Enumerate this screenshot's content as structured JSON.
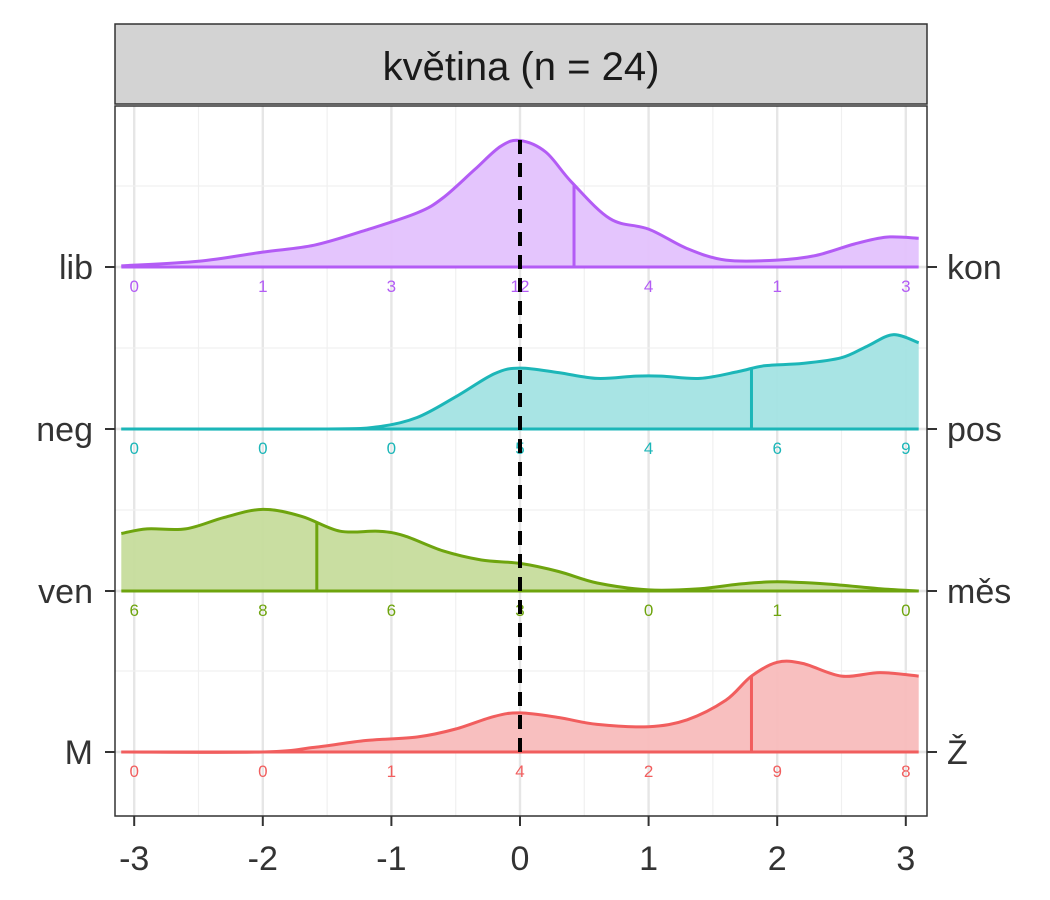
{
  "chart_data": {
    "type": "ridgeline",
    "title": "květina (n = 24)",
    "x_ticks": [
      -3,
      -2,
      -1,
      0,
      1,
      2,
      3
    ],
    "x_tick_labels": [
      "-3",
      "-2",
      "-1",
      "0",
      "1",
      "2",
      "3"
    ],
    "xlim": [
      -3.1,
      3.1
    ],
    "reference_line_x": 0,
    "grid": true,
    "count_positions": [
      -3,
      -2,
      -1,
      0,
      1,
      2,
      3
    ],
    "series": [
      {
        "left_label": "lib",
        "right_label": "kon",
        "color": "#b35cf5",
        "fill": "#e3c2fd",
        "mean": 0.42,
        "counts": [
          "0",
          "1",
          "3",
          "12",
          "4",
          "1",
          "3"
        ],
        "density": [
          [
            -3.1,
            0.01
          ],
          [
            -2.5,
            0.05
          ],
          [
            -2.0,
            0.13
          ],
          [
            -1.6,
            0.19
          ],
          [
            -1.2,
            0.32
          ],
          [
            -0.8,
            0.47
          ],
          [
            -0.6,
            0.6
          ],
          [
            -0.35,
            0.85
          ],
          [
            -0.15,
            1.05
          ],
          [
            0.0,
            1.1
          ],
          [
            0.2,
            1.0
          ],
          [
            0.4,
            0.74
          ],
          [
            0.7,
            0.42
          ],
          [
            1.0,
            0.33
          ],
          [
            1.3,
            0.16
          ],
          [
            1.6,
            0.06
          ],
          [
            2.0,
            0.06
          ],
          [
            2.3,
            0.1
          ],
          [
            2.6,
            0.2
          ],
          [
            2.85,
            0.26
          ],
          [
            3.1,
            0.25
          ]
        ]
      },
      {
        "left_label": "neg",
        "right_label": "pos",
        "color": "#1cb6b8",
        "fill": "#a3e3e3",
        "mean": 1.8,
        "counts": [
          "0",
          "0",
          "0",
          "5",
          "4",
          "6",
          "9"
        ],
        "density": [
          [
            -3.1,
            0.0
          ],
          [
            -1.5,
            0.0
          ],
          [
            -1.1,
            0.02
          ],
          [
            -0.8,
            0.1
          ],
          [
            -0.5,
            0.28
          ],
          [
            -0.2,
            0.48
          ],
          [
            0.0,
            0.53
          ],
          [
            0.3,
            0.49
          ],
          [
            0.6,
            0.44
          ],
          [
            0.9,
            0.46
          ],
          [
            1.1,
            0.46
          ],
          [
            1.4,
            0.44
          ],
          [
            1.7,
            0.5
          ],
          [
            1.9,
            0.55
          ],
          [
            2.2,
            0.57
          ],
          [
            2.5,
            0.62
          ],
          [
            2.7,
            0.72
          ],
          [
            2.9,
            0.82
          ],
          [
            3.1,
            0.75
          ]
        ]
      },
      {
        "left_label": "ven",
        "right_label": "měs",
        "color": "#6ea40e",
        "fill": "#c6dc9c",
        "mean": -1.58,
        "counts": [
          "6",
          "8",
          "6",
          "3",
          "0",
          "1",
          "0"
        ],
        "density": [
          [
            -3.1,
            0.5
          ],
          [
            -2.9,
            0.54
          ],
          [
            -2.6,
            0.54
          ],
          [
            -2.3,
            0.64
          ],
          [
            -2.0,
            0.71
          ],
          [
            -1.7,
            0.65
          ],
          [
            -1.4,
            0.52
          ],
          [
            -1.1,
            0.52
          ],
          [
            -0.9,
            0.48
          ],
          [
            -0.6,
            0.35
          ],
          [
            -0.3,
            0.27
          ],
          [
            0.0,
            0.24
          ],
          [
            0.3,
            0.17
          ],
          [
            0.6,
            0.07
          ],
          [
            1.0,
            0.01
          ],
          [
            1.4,
            0.02
          ],
          [
            1.7,
            0.06
          ],
          [
            2.0,
            0.08
          ],
          [
            2.4,
            0.06
          ],
          [
            2.8,
            0.02
          ],
          [
            3.1,
            0.0
          ]
        ]
      },
      {
        "left_label": "M",
        "right_label": "Ž",
        "color": "#f15e5e",
        "fill": "#f8bcbc",
        "mean": 1.8,
        "counts": [
          "0",
          "0",
          "1",
          "4",
          "2",
          "9",
          "8"
        ],
        "density": [
          [
            -3.1,
            0.0
          ],
          [
            -2.0,
            0.0
          ],
          [
            -1.6,
            0.04
          ],
          [
            -1.2,
            0.1
          ],
          [
            -0.8,
            0.13
          ],
          [
            -0.5,
            0.2
          ],
          [
            -0.2,
            0.31
          ],
          [
            0.0,
            0.34
          ],
          [
            0.3,
            0.3
          ],
          [
            0.6,
            0.24
          ],
          [
            1.0,
            0.22
          ],
          [
            1.3,
            0.28
          ],
          [
            1.6,
            0.45
          ],
          [
            1.8,
            0.66
          ],
          [
            2.0,
            0.78
          ],
          [
            2.2,
            0.77
          ],
          [
            2.5,
            0.66
          ],
          [
            2.8,
            0.69
          ],
          [
            3.1,
            0.66
          ]
        ]
      }
    ]
  }
}
